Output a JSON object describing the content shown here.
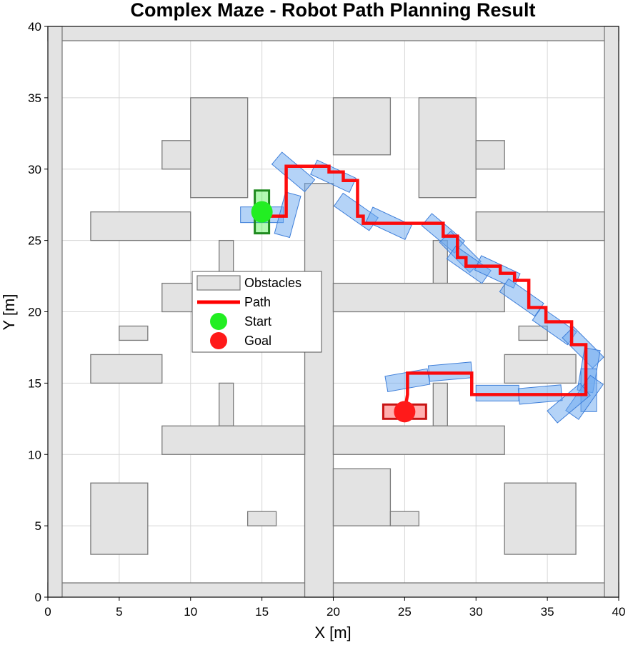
{
  "chart_data": {
    "type": "scatter",
    "title": "Complex Maze - Robot Path Planning Result",
    "xlabel": "X [m]",
    "ylabel": "Y [m]",
    "xlim": [
      0,
      40
    ],
    "ylim": [
      0,
      40
    ],
    "xticks": [
      "0",
      "5",
      "10",
      "15",
      "20",
      "25",
      "30",
      "35",
      "40"
    ],
    "yticks": [
      "0",
      "5",
      "10",
      "15",
      "20",
      "25",
      "30",
      "35",
      "40"
    ],
    "grid": true,
    "legend_position": "center-left",
    "legend": [
      {
        "label": "Obstacles",
        "kind": "box"
      },
      {
        "label": "Path",
        "kind": "line"
      },
      {
        "label": "Start",
        "kind": "start-dot"
      },
      {
        "label": "Goal",
        "kind": "goal-dot"
      }
    ],
    "colors": {
      "obstacle_fill": "#e3e3e3",
      "obstacle_edge": "#7a7a7a",
      "path": "#ff0000",
      "footprint_fill": "#6aa8f0",
      "footprint_edge": "#3f7fd9",
      "start": "#22ee22",
      "start_box": "#1e8a1e",
      "goal": "#ff1a1a",
      "goal_box": "#c81414",
      "grid": "#d6d6d6"
    },
    "obstacles": [
      [
        0,
        0,
        40,
        1
      ],
      [
        0,
        39,
        40,
        1
      ],
      [
        0,
        0,
        1,
        40
      ],
      [
        39,
        0,
        1,
        40
      ],
      [
        18,
        0,
        2,
        29
      ],
      [
        10,
        28,
        4,
        7
      ],
      [
        8,
        30,
        2,
        2
      ],
      [
        20,
        31,
        4,
        4
      ],
      [
        26,
        28,
        4,
        7
      ],
      [
        30,
        30,
        2,
        2
      ],
      [
        3,
        25,
        7,
        2
      ],
      [
        30,
        25,
        9,
        2
      ],
      [
        12,
        22,
        1,
        3
      ],
      [
        27,
        22,
        1,
        3
      ],
      [
        8,
        20,
        10,
        2
      ],
      [
        20,
        20,
        12,
        2
      ],
      [
        5,
        18,
        2,
        1
      ],
      [
        33,
        18,
        2,
        1
      ],
      [
        3,
        15,
        5,
        2
      ],
      [
        32,
        15,
        5,
        2
      ],
      [
        12,
        12,
        1,
        3
      ],
      [
        27,
        12,
        1,
        3
      ],
      [
        8,
        10,
        10,
        2
      ],
      [
        20,
        10,
        12,
        2
      ],
      [
        20,
        5,
        4,
        4
      ],
      [
        24,
        5,
        2,
        1
      ],
      [
        14,
        5,
        2,
        1
      ],
      [
        3,
        3,
        4,
        5
      ],
      [
        32,
        3,
        5,
        5
      ]
    ],
    "path": {
      "x": [
        15,
        16.7,
        16.7,
        19.7,
        19.7,
        20.7,
        20.7,
        21.7,
        21.7,
        22.1,
        22.1,
        27.7,
        27.7,
        28.7,
        28.7,
        29.3,
        29.3,
        31.7,
        31.7,
        32.7,
        32.7,
        33.7,
        33.7,
        34.9,
        34.9,
        36.7,
        36.7,
        37.7,
        37.7,
        29.7,
        29.7,
        25.2,
        25.2,
        25
      ],
      "y": [
        26.7,
        26.7,
        30.2,
        30.2,
        29.8,
        29.8,
        29.2,
        29.2,
        26.7,
        26.7,
        26.2,
        26.2,
        25.3,
        25.3,
        23.8,
        23.8,
        23.2,
        23.2,
        22.7,
        22.7,
        22.2,
        22.2,
        20.3,
        20.3,
        19.3,
        19.3,
        17.7,
        17.7,
        14.2,
        14.2,
        15.7,
        15.7,
        14.2,
        13
      ]
    },
    "footprints": [
      {
        "x": 15,
        "y": 26.8,
        "heading": 0
      },
      {
        "x": 16.8,
        "y": 26.8,
        "heading": 75
      },
      {
        "x": 17.2,
        "y": 29.8,
        "heading": -40
      },
      {
        "x": 20,
        "y": 29.5,
        "heading": -25
      },
      {
        "x": 21.6,
        "y": 27,
        "heading": -35
      },
      {
        "x": 23.9,
        "y": 26.2,
        "heading": -25
      },
      {
        "x": 27.7,
        "y": 25.5,
        "heading": -40
      },
      {
        "x": 28.9,
        "y": 24.2,
        "heading": -45
      },
      {
        "x": 29.5,
        "y": 23.3,
        "heading": -35
      },
      {
        "x": 31.5,
        "y": 22.8,
        "heading": -25
      },
      {
        "x": 33.2,
        "y": 21,
        "heading": -35
      },
      {
        "x": 35.5,
        "y": 19,
        "heading": -35
      },
      {
        "x": 37.5,
        "y": 17.5,
        "heading": -45
      },
      {
        "x": 37.9,
        "y": 15.9,
        "heading": 80
      },
      {
        "x": 37.9,
        "y": 14.5,
        "heading": 90
      },
      {
        "x": 37.6,
        "y": 14,
        "heading": 55
      },
      {
        "x": 36.5,
        "y": 13.6,
        "heading": 40
      },
      {
        "x": 34.5,
        "y": 14.2,
        "heading": 5
      },
      {
        "x": 31.5,
        "y": 14.3,
        "heading": 0
      },
      {
        "x": 28.2,
        "y": 15.8,
        "heading": 5
      },
      {
        "x": 25.2,
        "y": 15.2,
        "heading": 10
      }
    ],
    "start": {
      "x": 15,
      "y": 27
    },
    "goal": {
      "x": 25,
      "y": 13
    }
  }
}
